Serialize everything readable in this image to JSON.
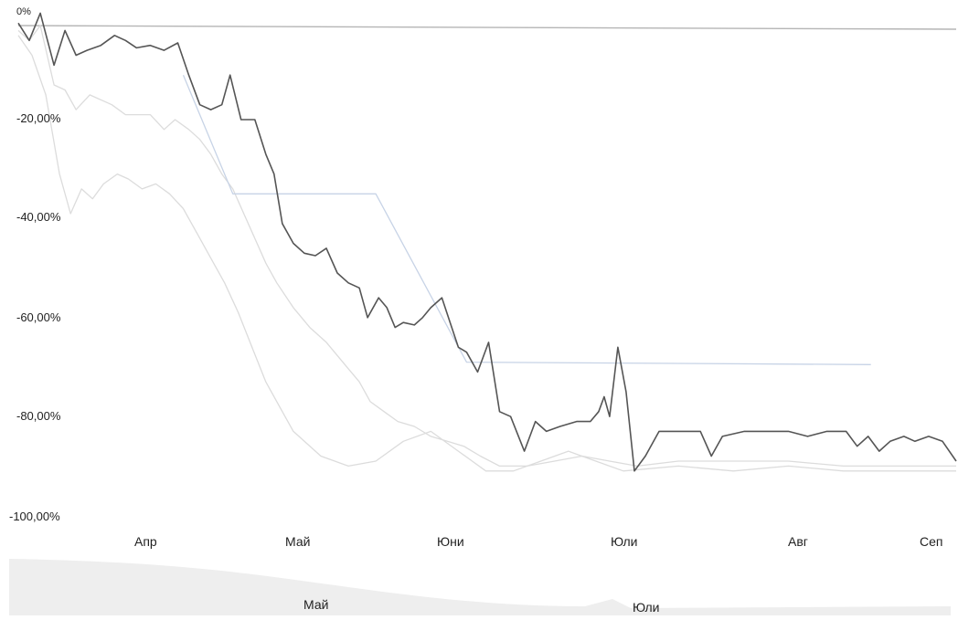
{
  "chart_data": {
    "type": "line",
    "title": "",
    "xlabel": "",
    "ylabel": "",
    "ylim": [
      -100,
      0
    ],
    "grid": false,
    "legend": "none",
    "y_ticks": [
      {
        "value": 0,
        "label": "0%"
      },
      {
        "value": -20,
        "label": "-20,00%"
      },
      {
        "value": -40,
        "label": "-40,00%"
      },
      {
        "value": -60,
        "label": "-60,00%"
      },
      {
        "value": -80,
        "label": "-80,00%"
      },
      {
        "value": -100,
        "label": "-100,00%"
      }
    ],
    "x_ticks": [
      "Апр",
      "Май",
      "Юни",
      "Юли",
      "Авг",
      "Сеп"
    ],
    "navigator": {
      "labels": [
        "Май",
        "Юли"
      ]
    },
    "colors": {
      "zero_line": "#b5b5b5",
      "main_series": "#555555",
      "light_series": "#dcdcdc",
      "step_series": "#c7d3e6",
      "navigator": "#eeeeee"
    },
    "series": [
      {
        "color": "#555555",
        "values": [
          [
            0,
            0.5
          ],
          [
            4,
            -3
          ],
          [
            8,
            2.5
          ],
          [
            13,
            -8
          ],
          [
            17,
            -1
          ],
          [
            21,
            -6
          ],
          [
            25,
            -5
          ],
          [
            30,
            -4
          ],
          [
            35,
            -2
          ],
          [
            39,
            -3
          ],
          [
            43,
            -4.5
          ],
          [
            48,
            -4
          ],
          [
            53,
            -5
          ],
          [
            58,
            -3.5
          ],
          [
            62,
            -10
          ],
          [
            66,
            -16
          ],
          [
            70,
            -17
          ],
          [
            74,
            -16
          ],
          [
            77,
            -10
          ],
          [
            81,
            -19
          ],
          [
            86,
            -19
          ],
          [
            90,
            -26
          ],
          [
            93,
            -30
          ],
          [
            96,
            -40
          ],
          [
            100,
            -44
          ],
          [
            104,
            -46
          ],
          [
            108,
            -46.5
          ],
          [
            112,
            -45
          ],
          [
            116,
            -50
          ],
          [
            120,
            -52
          ],
          [
            124,
            -53
          ],
          [
            127,
            -59
          ],
          [
            131,
            -55
          ],
          [
            134,
            -57
          ],
          [
            137,
            -61
          ],
          [
            140,
            -60
          ],
          [
            144,
            -60.5
          ],
          [
            147,
            -59
          ],
          [
            150,
            -57
          ],
          [
            154,
            -55
          ],
          [
            157,
            -60
          ],
          [
            160,
            -65
          ],
          [
            163,
            -66
          ],
          [
            167,
            -70
          ],
          [
            171,
            -64
          ],
          [
            175,
            -78
          ],
          [
            179,
            -79
          ],
          [
            184,
            -86
          ],
          [
            188,
            -80
          ],
          [
            192,
            -82
          ],
          [
            197,
            -81
          ],
          [
            203,
            -80
          ],
          [
            208,
            -80
          ],
          [
            211,
            -78
          ],
          [
            213,
            -75
          ],
          [
            215,
            -79
          ],
          [
            218,
            -65
          ],
          [
            221,
            -74
          ],
          [
            224,
            -90
          ],
          [
            228,
            -87
          ],
          [
            233,
            -82
          ],
          [
            240,
            -82
          ],
          [
            248,
            -82
          ],
          [
            252,
            -87
          ],
          [
            256,
            -83
          ],
          [
            264,
            -82
          ],
          [
            272,
            -82
          ],
          [
            280,
            -82
          ],
          [
            287,
            -83
          ],
          [
            294,
            -82
          ],
          [
            301,
            -82
          ],
          [
            305,
            -85
          ],
          [
            309,
            -83
          ],
          [
            313,
            -86
          ],
          [
            317,
            -84
          ],
          [
            322,
            -83
          ],
          [
            326,
            -84
          ],
          [
            331,
            -83
          ],
          [
            336,
            -84
          ],
          [
            341,
            -88
          ]
        ]
      },
      {
        "color": "#dcdcdc",
        "values": [
          [
            0,
            -1
          ],
          [
            4,
            -3
          ],
          [
            8,
            0
          ],
          [
            13,
            -12
          ],
          [
            17,
            -13
          ],
          [
            21,
            -17
          ],
          [
            26,
            -14
          ],
          [
            30,
            -15
          ],
          [
            34,
            -16
          ],
          [
            39,
            -18
          ],
          [
            43,
            -18
          ],
          [
            48,
            -18
          ],
          [
            53,
            -21
          ],
          [
            57,
            -19
          ],
          [
            62,
            -21
          ],
          [
            66,
            -23
          ],
          [
            70,
            -26
          ],
          [
            74,
            -30
          ],
          [
            78,
            -33
          ],
          [
            82,
            -38
          ],
          [
            86,
            -43
          ],
          [
            90,
            -48
          ],
          [
            94,
            -52
          ],
          [
            100,
            -57
          ],
          [
            106,
            -61
          ],
          [
            112,
            -64
          ],
          [
            118,
            -68
          ],
          [
            124,
            -72
          ],
          [
            128,
            -76
          ],
          [
            133,
            -78
          ],
          [
            138,
            -80
          ],
          [
            144,
            -81
          ],
          [
            150,
            -83
          ],
          [
            156,
            -84
          ],
          [
            162,
            -85
          ],
          [
            168,
            -87
          ],
          [
            175,
            -89
          ],
          [
            185,
            -89
          ],
          [
            195,
            -88
          ],
          [
            205,
            -87
          ],
          [
            215,
            -88
          ],
          [
            225,
            -89
          ],
          [
            240,
            -88
          ],
          [
            260,
            -88
          ],
          [
            280,
            -88
          ],
          [
            300,
            -89
          ],
          [
            320,
            -89
          ],
          [
            341,
            -89
          ]
        ]
      },
      {
        "color": "#dcdcdc",
        "values": [
          [
            0,
            -2
          ],
          [
            5,
            -6
          ],
          [
            10,
            -14
          ],
          [
            15,
            -30
          ],
          [
            19,
            -38
          ],
          [
            23,
            -33
          ],
          [
            27,
            -35
          ],
          [
            31,
            -32
          ],
          [
            36,
            -30
          ],
          [
            40,
            -31
          ],
          [
            45,
            -33
          ],
          [
            50,
            -32
          ],
          [
            55,
            -34
          ],
          [
            60,
            -37
          ],
          [
            65,
            -42
          ],
          [
            70,
            -47
          ],
          [
            75,
            -52
          ],
          [
            80,
            -58
          ],
          [
            85,
            -65
          ],
          [
            90,
            -72
          ],
          [
            95,
            -77
          ],
          [
            100,
            -82
          ],
          [
            110,
            -87
          ],
          [
            120,
            -89
          ],
          [
            130,
            -88
          ],
          [
            140,
            -84
          ],
          [
            150,
            -82
          ],
          [
            160,
            -86
          ],
          [
            170,
            -90
          ],
          [
            180,
            -90
          ],
          [
            190,
            -88
          ],
          [
            200,
            -86
          ],
          [
            210,
            -88
          ],
          [
            220,
            -90
          ],
          [
            240,
            -89
          ],
          [
            260,
            -90
          ],
          [
            280,
            -89
          ],
          [
            300,
            -90
          ],
          [
            320,
            -90
          ],
          [
            341,
            -90
          ]
        ]
      },
      {
        "color": "#c7d3e6",
        "values": [
          [
            60,
            -10
          ],
          [
            78,
            -34
          ],
          [
            130,
            -34
          ],
          [
            163,
            -68
          ],
          [
            310,
            -68.5
          ]
        ]
      }
    ]
  }
}
